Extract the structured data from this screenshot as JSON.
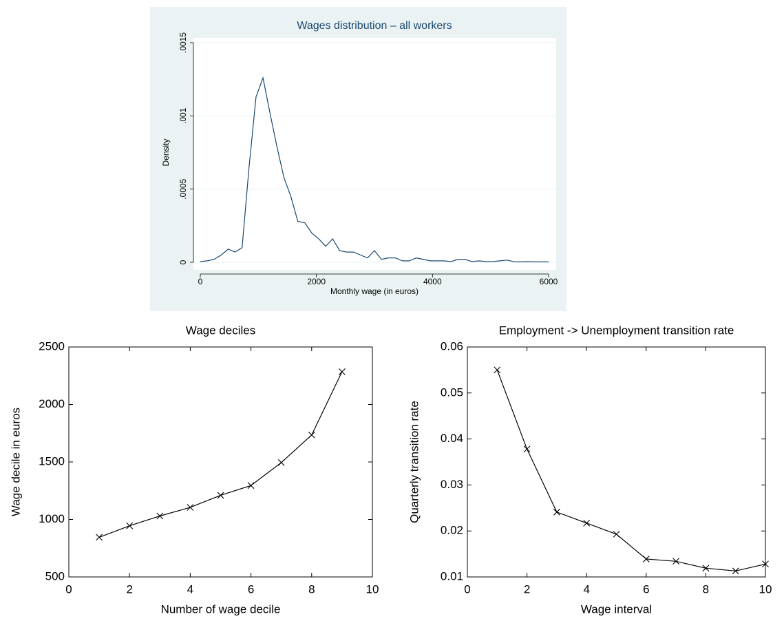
{
  "chart_data": [
    {
      "type": "line",
      "title": "Wages distribution – all workers",
      "xlabel": "Monthly wage (in euros)",
      "ylabel": "Density",
      "x": [
        0,
        120,
        240,
        360,
        480,
        600,
        720,
        840,
        960,
        1080,
        1200,
        1320,
        1440,
        1560,
        1680,
        1800,
        1920,
        2040,
        2160,
        2280,
        2400,
        2520,
        2640,
        2760,
        2880,
        3000,
        3120,
        3240,
        3360,
        3480,
        3600,
        3720,
        3840,
        3960,
        4080,
        4200,
        4320,
        4440,
        4560,
        4680,
        4800,
        4920,
        5040,
        5160,
        5280,
        5400,
        5520,
        5640,
        5760,
        5880,
        6000
      ],
      "values": [
        5e-06,
        1e-05,
        2e-05,
        5e-05,
        9e-05,
        7e-05,
        0.0001,
        0.00065,
        0.00113,
        0.00126,
        0.00102,
        0.00079,
        0.00058,
        0.00045,
        0.00028,
        0.00027,
        0.0002,
        0.00016,
        0.00011,
        0.00016,
        8e-05,
        7e-05,
        7e-05,
        5e-05,
        3e-05,
        8e-05,
        2e-05,
        3e-05,
        3e-05,
        1e-05,
        1e-05,
        3e-05,
        2e-05,
        1e-05,
        1e-05,
        1e-05,
        5e-06,
        2e-05,
        2e-05,
        5e-06,
        1e-05,
        5e-06,
        5e-06,
        1e-05,
        1.5e-05,
        5e-06,
        3e-06,
        5e-06,
        3e-06,
        3e-06,
        3e-06
      ],
      "color": "#1a476f",
      "xlim": [
        0,
        6000
      ],
      "xticks": [
        0,
        2000,
        4000,
        6000
      ],
      "ylim": [
        0,
        0.0015
      ],
      "yticks": [
        0,
        {
          "value": 0.0005,
          "label": ".0005"
        },
        {
          "value": 0.001,
          "label": ".001"
        },
        {
          "value": 0.0015,
          "label": ".0015"
        }
      ],
      "grid": true
    },
    {
      "type": "line",
      "title": "Wage deciles",
      "xlabel": "Number of wage decile",
      "ylabel": "Wage decile in euros",
      "x": [
        1,
        2,
        3,
        4,
        5,
        6,
        7,
        8,
        9
      ],
      "values": [
        845,
        945,
        1030,
        1105,
        1210,
        1295,
        1495,
        1735,
        2285
      ],
      "color": "#000000",
      "marker": "x",
      "xlim": [
        0,
        10
      ],
      "xticks": [
        0,
        2,
        4,
        6,
        8,
        10
      ],
      "ylim": [
        500,
        2500
      ],
      "yticks": [
        500,
        1000,
        1500,
        2000,
        2500
      ],
      "grid": false
    },
    {
      "type": "line",
      "title": "Employment -> Unemployment transition rate",
      "xlabel": "Wage interval",
      "ylabel": "Quarterly transition rate",
      "x": [
        1,
        2,
        3,
        4,
        5,
        6,
        7,
        8,
        9,
        10
      ],
      "values": [
        0.055,
        0.0378,
        0.0241,
        0.0217,
        0.0193,
        0.0139,
        0.0134,
        0.0119,
        0.0113,
        0.0128
      ],
      "color": "#000000",
      "marker": "x",
      "xlim": [
        0,
        10
      ],
      "xticks": [
        0,
        2,
        4,
        6,
        8,
        10
      ],
      "ylim": [
        0.01,
        0.06
      ],
      "yticks": [
        0.01,
        0.02,
        0.03,
        0.04,
        0.05,
        0.06
      ],
      "grid": false
    }
  ]
}
